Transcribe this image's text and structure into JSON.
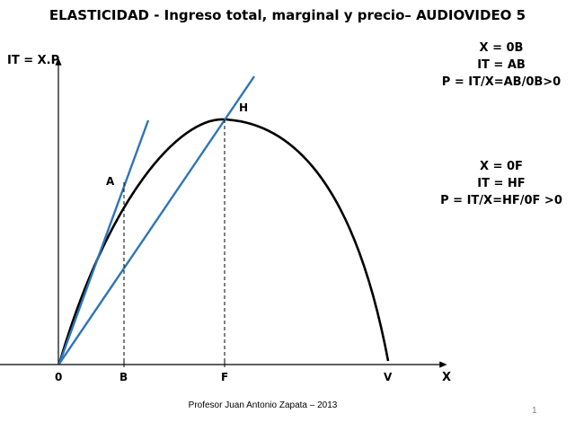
{
  "title": "ELASTICIDAD - Ingreso total, marginal y precio– AUDIOVIDEO 5",
  "y_axis_label": "IT = X.P",
  "x_axis_label": "X",
  "points": {
    "origin": "0",
    "A": "A",
    "H": "H",
    "B": "B",
    "F": "F",
    "V": "V"
  },
  "note_top": {
    "line1": "X = 0B",
    "line2": "IT = AB",
    "line3": "P = IT/X=AB/0B>0"
  },
  "note_middle": {
    "line1": "X = 0F",
    "line2": "IT = HF",
    "line3": "P = IT/X=HF/0F >0"
  },
  "footer": "Profesor Juan Antonio Zapata – 2013",
  "slide_number": "1",
  "colors": {
    "curve": "#000000",
    "ray_lines": "#2e75b6",
    "axes": "#000000"
  }
}
